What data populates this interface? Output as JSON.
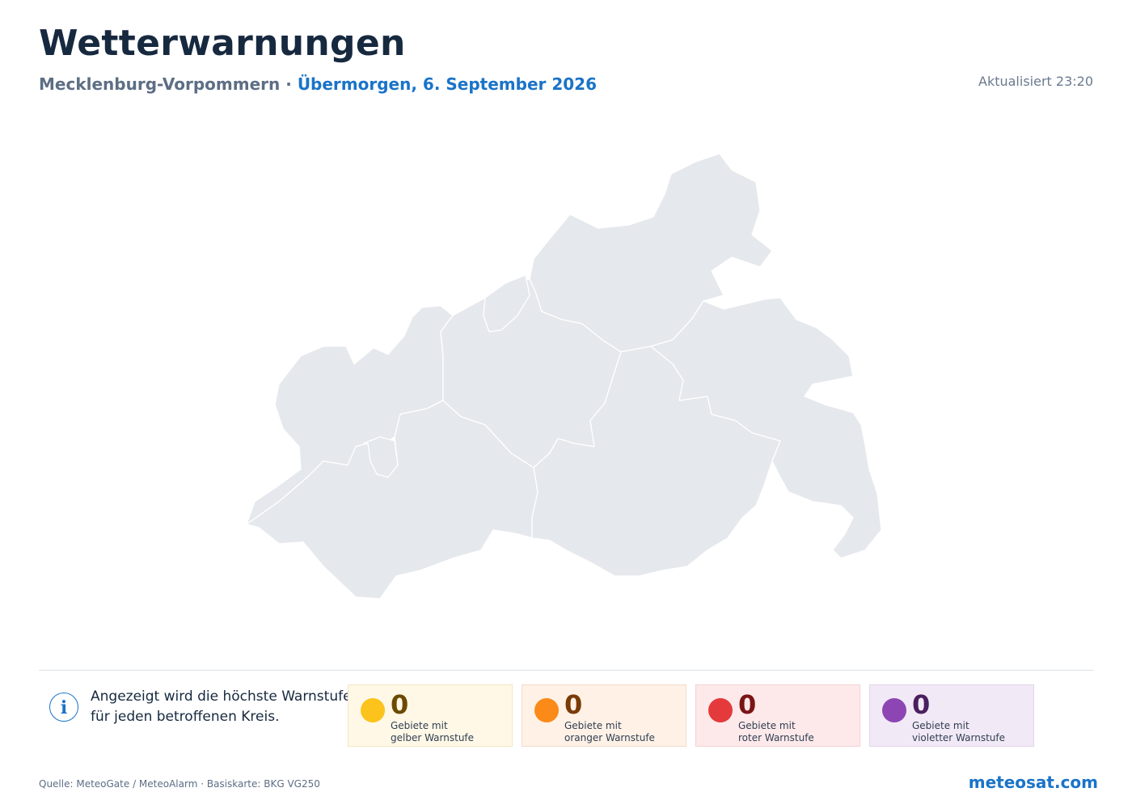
{
  "header": {
    "title": "Wetterwarnungen",
    "region": "Mecklenburg-Vorpommern",
    "separator": "·",
    "date": "Übermorgen, 6. September 2026",
    "updated": "Aktualisiert 23:20"
  },
  "map": {
    "fill_color": "#e5e8ec",
    "border_color": "#ffffff",
    "districts_shown": 8,
    "warnings_shown": 0
  },
  "info": {
    "icon": "info-icon",
    "line1": "Angezeigt wird die höchste Warnstufe",
    "line2": "für jeden betroffenen Kreis."
  },
  "legend": [
    {
      "count": "0",
      "line1": "Gebiete mit",
      "line2": "gelber Warnstufe",
      "color": "#fbc31b"
    },
    {
      "count": "0",
      "line1": "Gebiete mit",
      "line2": "oranger Warnstufe",
      "color": "#fb8a18"
    },
    {
      "count": "0",
      "line1": "Gebiete mit",
      "line2": "roter Warnstufe",
      "color": "#e53a3c"
    },
    {
      "count": "0",
      "line1": "Gebiete mit",
      "line2": "violetter Warnstufe",
      "color": "#8d45b4"
    }
  ],
  "footer": {
    "source": "Quelle: MeteoGate / MeteoAlarm · Basiskarte: BKG VG250",
    "brand": "meteosat.com"
  }
}
